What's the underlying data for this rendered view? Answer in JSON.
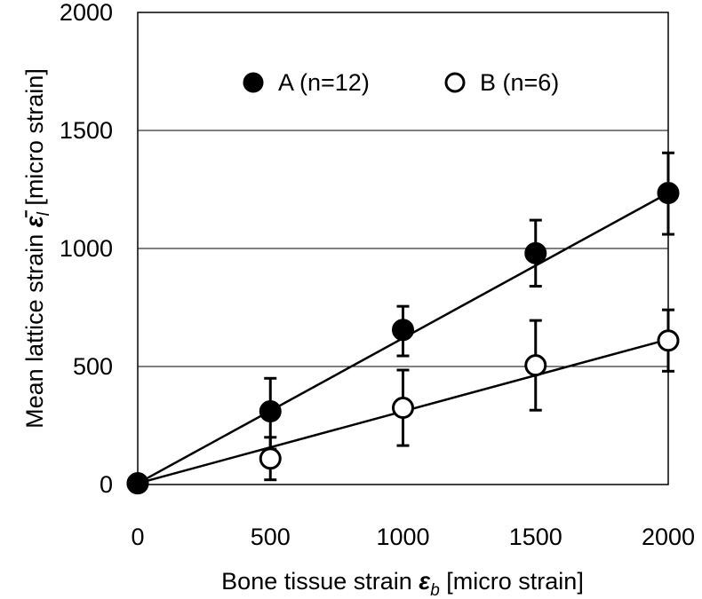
{
  "chart_data": {
    "type": "scatter",
    "x_tick_labels": [
      "0",
      "500",
      "1000",
      "1500",
      "2000"
    ],
    "y_tick_labels": [
      "0",
      "500",
      "1000",
      "1500",
      "2000"
    ],
    "xlim": [
      0,
      2000
    ],
    "ylim": [
      0,
      2000
    ],
    "grid": "horizontal",
    "legend_position": "top",
    "xlabel": {
      "prefix": "Bone tissue strain ",
      "symbol": "ε",
      "subscript": "b",
      "suffix": " [micro strain]"
    },
    "ylabel": {
      "prefix": "Mean lattice strain ",
      "symbol": "ε̄",
      "subscript": "l",
      "suffix": " [micro strain]"
    },
    "series": [
      {
        "name": "A (n=12)",
        "marker": "filled-circle",
        "x": [
          0,
          500,
          1000,
          1500,
          2000
        ],
        "y": [
          5,
          310,
          655,
          980,
          1235
        ],
        "err_low": [
          null,
          160,
          110,
          140,
          175
        ],
        "err_high": [
          null,
          140,
          100,
          140,
          170
        ],
        "fit": {
          "x": [
            0,
            2000
          ],
          "y": [
            5,
            1235
          ]
        }
      },
      {
        "name": "B (n=6)",
        "marker": "open-circle",
        "x": [
          0,
          500,
          1000,
          1500,
          2000
        ],
        "y": [
          5,
          110,
          325,
          505,
          610
        ],
        "err_low": [
          null,
          90,
          160,
          190,
          130
        ],
        "err_high": [
          null,
          90,
          160,
          190,
          130
        ],
        "fit": {
          "x": [
            0,
            2000
          ],
          "y": [
            5,
            615
          ]
        }
      }
    ]
  }
}
